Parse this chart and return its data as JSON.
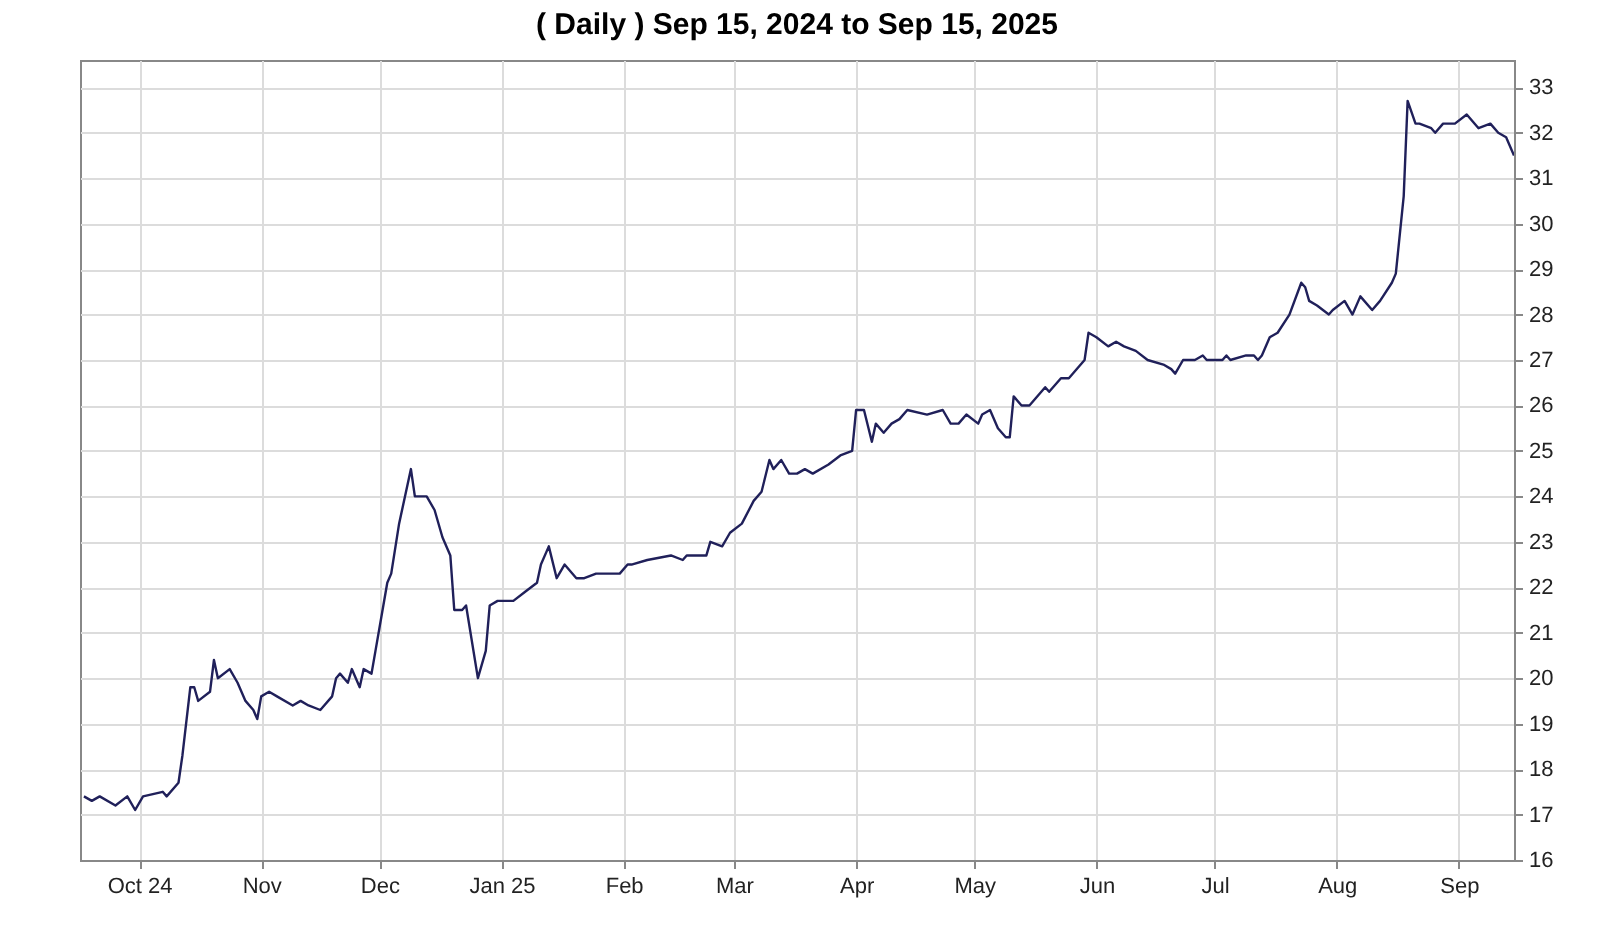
{
  "chart_data": {
    "type": "line",
    "title": "( Daily ) Sep 15, 2024 to Sep 15, 2025",
    "x": [
      "2024-09-17",
      "2024-09-19",
      "2024-09-21",
      "2024-09-25",
      "2024-09-28",
      "2024-09-30",
      "2024-10-02",
      "2024-10-07",
      "2024-10-08",
      "2024-10-11",
      "2024-10-12",
      "2024-10-14",
      "2024-10-15",
      "2024-10-16",
      "2024-10-19",
      "2024-10-20",
      "2024-10-21",
      "2024-10-24",
      "2024-10-26",
      "2024-10-28",
      "2024-10-30",
      "2024-10-31",
      "2024-11-01",
      "2024-11-03",
      "2024-11-05",
      "2024-11-09",
      "2024-11-11",
      "2024-11-13",
      "2024-11-16",
      "2024-11-19",
      "2024-11-20",
      "2024-11-21",
      "2024-11-23",
      "2024-11-24",
      "2024-11-26",
      "2024-11-27",
      "2024-11-29",
      "2024-11-30",
      "2024-12-02",
      "2024-12-03",
      "2024-12-04",
      "2024-12-06",
      "2024-12-09",
      "2024-12-10",
      "2024-12-13",
      "2024-12-15",
      "2024-12-17",
      "2024-12-19",
      "2024-12-20",
      "2024-12-22",
      "2024-12-23",
      "2024-12-26",
      "2024-12-28",
      "2024-12-29",
      "2024-12-31",
      "2025-01-04",
      "2025-01-07",
      "2025-01-10",
      "2025-01-11",
      "2025-01-13",
      "2025-01-15",
      "2025-01-17",
      "2025-01-20",
      "2025-01-22",
      "2025-01-25",
      "2025-01-27",
      "2025-01-31",
      "2025-02-02",
      "2025-02-03",
      "2025-02-07",
      "2025-02-13",
      "2025-02-16",
      "2025-02-17",
      "2025-02-22",
      "2025-02-23",
      "2025-02-26",
      "2025-02-28",
      "2025-03-03",
      "2025-03-06",
      "2025-03-08",
      "2025-03-10",
      "2025-03-11",
      "2025-03-13",
      "2025-03-15",
      "2025-03-17",
      "2025-03-19",
      "2025-03-21",
      "2025-03-25",
      "2025-03-28",
      "2025-03-31",
      "2025-04-01",
      "2025-04-03",
      "2025-04-05",
      "2025-04-06",
      "2025-04-08",
      "2025-04-10",
      "2025-04-12",
      "2025-04-14",
      "2025-04-19",
      "2025-04-23",
      "2025-04-25",
      "2025-04-27",
      "2025-04-29",
      "2025-05-02",
      "2025-05-03",
      "2025-05-05",
      "2025-05-07",
      "2025-05-09",
      "2025-05-10",
      "2025-05-11",
      "2025-05-13",
      "2025-05-15",
      "2025-05-19",
      "2025-05-20",
      "2025-05-23",
      "2025-05-25",
      "2025-05-29",
      "2025-05-30",
      "2025-06-01",
      "2025-06-04",
      "2025-06-06",
      "2025-06-08",
      "2025-06-11",
      "2025-06-14",
      "2025-06-18",
      "2025-06-20",
      "2025-06-21",
      "2025-06-23",
      "2025-06-26",
      "2025-06-28",
      "2025-06-29",
      "2025-07-03",
      "2025-07-04",
      "2025-07-05",
      "2025-07-09",
      "2025-07-11",
      "2025-07-12",
      "2025-07-13",
      "2025-07-15",
      "2025-07-17",
      "2025-07-20",
      "2025-07-23",
      "2025-07-24",
      "2025-07-25",
      "2025-07-27",
      "2025-07-30",
      "2025-07-31",
      "2025-08-03",
      "2025-08-05",
      "2025-08-07",
      "2025-08-10",
      "2025-08-12",
      "2025-08-15",
      "2025-08-16",
      "2025-08-18",
      "2025-08-19",
      "2025-08-21",
      "2025-08-22",
      "2025-08-25",
      "2025-08-26",
      "2025-08-28",
      "2025-08-31",
      "2025-09-03",
      "2025-09-06",
      "2025-09-09",
      "2025-09-11",
      "2025-09-13",
      "2025-09-15"
    ],
    "series": [
      {
        "color": "#20205a",
        "values": [
          17.4,
          17.3,
          17.4,
          17.2,
          17.4,
          17.1,
          17.4,
          17.5,
          17.4,
          17.7,
          18.3,
          19.8,
          19.8,
          19.5,
          19.7,
          20.4,
          20.0,
          20.2,
          19.9,
          19.5,
          19.3,
          19.1,
          19.6,
          19.7,
          19.6,
          19.4,
          19.5,
          19.4,
          19.3,
          19.6,
          20.0,
          20.1,
          19.9,
          20.2,
          19.8,
          20.2,
          20.1,
          20.6,
          21.6,
          22.1,
          22.3,
          23.4,
          24.6,
          24.0,
          24.0,
          23.7,
          23.1,
          22.7,
          21.5,
          21.5,
          21.6,
          20.0,
          20.6,
          21.6,
          21.7,
          21.7,
          21.9,
          22.1,
          22.5,
          22.9,
          22.2,
          22.5,
          22.2,
          22.2,
          22.3,
          22.3,
          22.3,
          22.5,
          22.5,
          22.6,
          22.7,
          22.6,
          22.7,
          22.7,
          23.0,
          22.9,
          23.2,
          23.4,
          23.9,
          24.1,
          24.8,
          24.6,
          24.8,
          24.5,
          24.5,
          24.6,
          24.5,
          24.7,
          24.9,
          25.0,
          25.9,
          25.9,
          25.2,
          25.6,
          25.4,
          25.6,
          25.7,
          25.9,
          25.8,
          25.9,
          25.6,
          25.6,
          25.8,
          25.6,
          25.8,
          25.9,
          25.5,
          25.3,
          25.3,
          26.2,
          26.0,
          26.0,
          26.4,
          26.3,
          26.6,
          26.6,
          27.0,
          27.6,
          27.5,
          27.3,
          27.4,
          27.3,
          27.2,
          27.0,
          26.9,
          26.8,
          26.7,
          27.0,
          27.0,
          27.1,
          27.0,
          27.0,
          27.1,
          27.0,
          27.1,
          27.1,
          27.0,
          27.1,
          27.5,
          27.6,
          28.0,
          28.7,
          28.6,
          28.3,
          28.2,
          28.0,
          28.1,
          28.3,
          28.0,
          28.4,
          28.1,
          28.3,
          28.7,
          28.9,
          30.6,
          32.7,
          32.2,
          32.2,
          32.1,
          32.0,
          32.2,
          32.2,
          32.4,
          32.1,
          32.2,
          32.0,
          31.9,
          31.5
        ]
      }
    ],
    "xlim": [
      "2024-09-16",
      "2025-09-15"
    ],
    "xticks": [
      {
        "value": "2024-10-01",
        "label": "Oct 24"
      },
      {
        "value": "2024-11-01",
        "label": "Nov"
      },
      {
        "value": "2024-12-01",
        "label": "Dec"
      },
      {
        "value": "2025-01-01",
        "label": "Jan 25"
      },
      {
        "value": "2025-02-01",
        "label": "Feb"
      },
      {
        "value": "2025-03-01",
        "label": "Mar"
      },
      {
        "value": "2025-04-01",
        "label": "Apr"
      },
      {
        "value": "2025-05-01",
        "label": "May"
      },
      {
        "value": "2025-06-01",
        "label": "Jun"
      },
      {
        "value": "2025-07-01",
        "label": "Jul"
      },
      {
        "value": "2025-08-01",
        "label": "Aug"
      },
      {
        "value": "2025-09-01",
        "label": "Sep"
      }
    ],
    "ylim": [
      16,
      33.6
    ],
    "yticks": [
      16,
      17,
      18,
      19,
      20,
      21,
      22,
      23,
      24,
      25,
      26,
      27,
      28,
      29,
      30,
      31,
      32,
      33
    ],
    "grid": true,
    "marker": "none",
    "line_style": "solid"
  }
}
